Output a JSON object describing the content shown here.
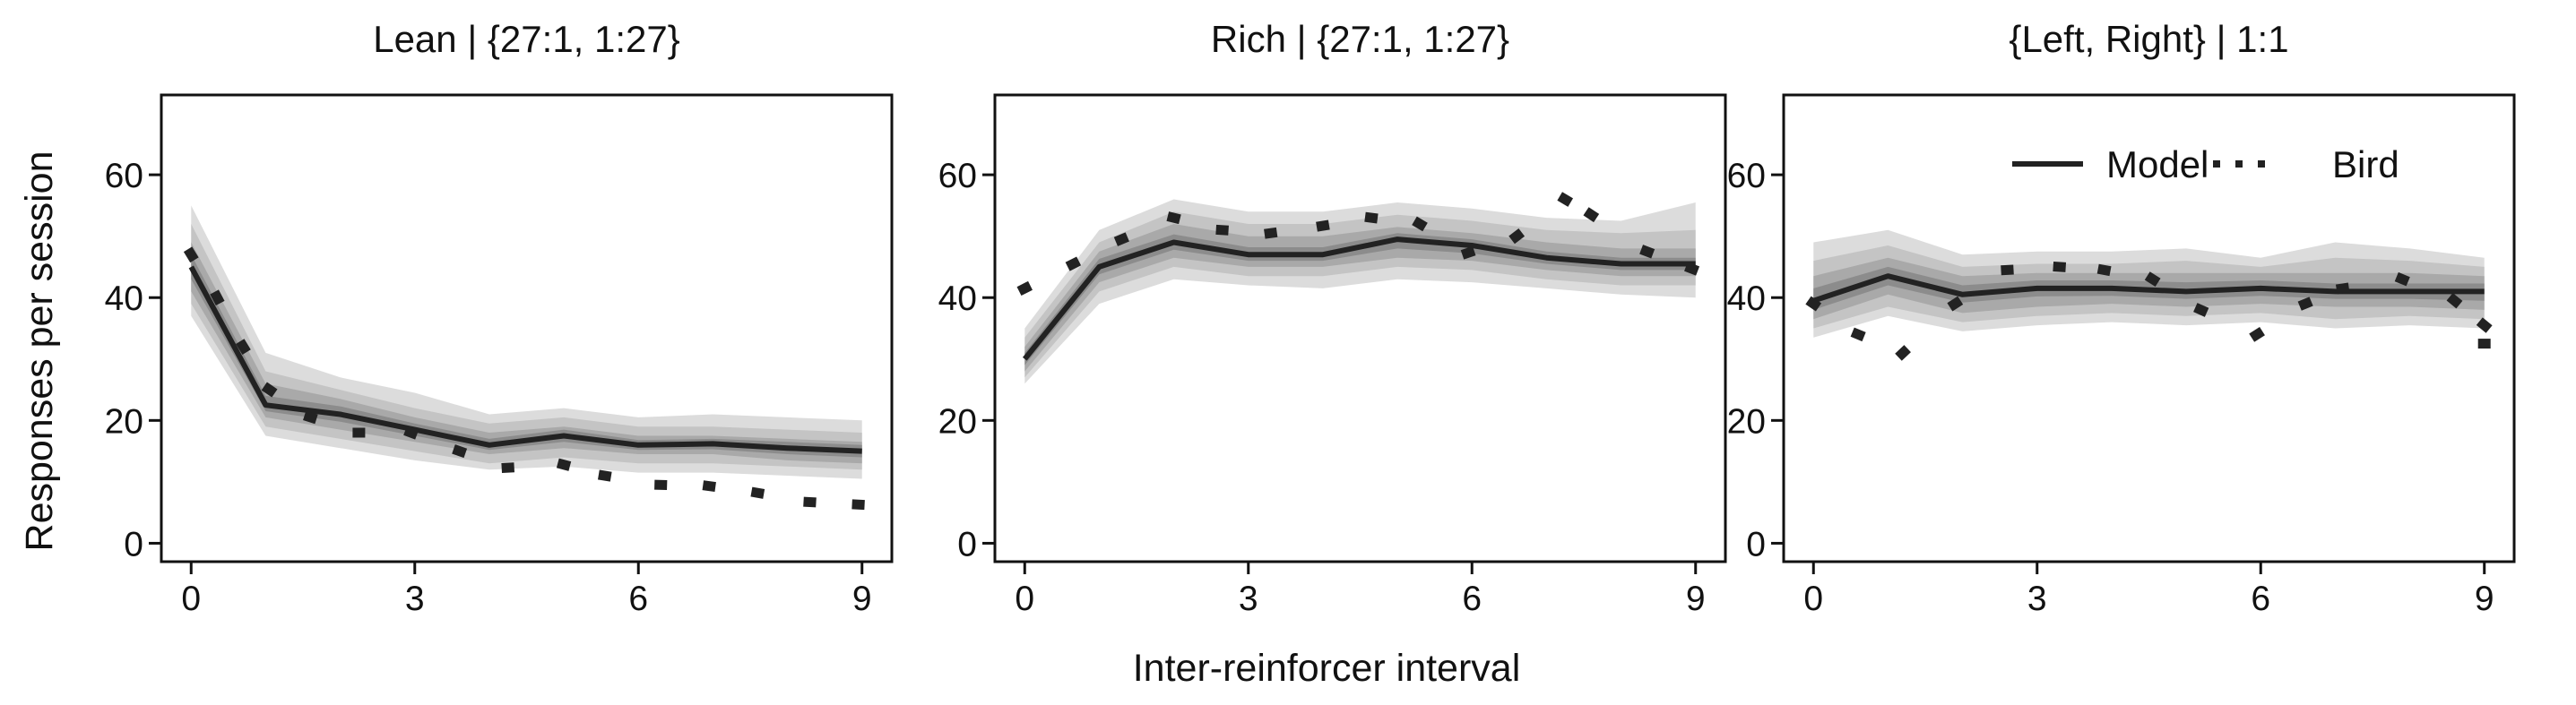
{
  "figure": {
    "xlabel": "Inter-reinforcer interval",
    "ylabel": "Responses per session"
  },
  "legend": {
    "model_label": "Model",
    "bird_label": "Bird"
  },
  "colors": {
    "line": "#222222",
    "band_outer": "#dcdcdc",
    "band_2": "#c4c4c4",
    "band_3": "#a9a9a9",
    "band_inner": "#8c8c8c"
  },
  "chart_data": [
    {
      "type": "line",
      "title": "Lean | {27:1, 1:27}",
      "xlim": [
        -0.4,
        9.4
      ],
      "ylim": [
        -3,
        73
      ],
      "xticks": [
        0,
        3,
        6,
        9
      ],
      "yticks": [
        0,
        20,
        40,
        60
      ],
      "series": [
        {
          "name": "Model",
          "x": [
            0,
            1,
            2,
            3,
            4,
            5,
            6,
            7,
            8,
            9
          ],
          "values": [
            45,
            22.5,
            21,
            18.5,
            16,
            17.5,
            16,
            16.2,
            15.5,
            15
          ],
          "bands": [
            {
              "lower": [
                37,
                17.5,
                15.5,
                13.5,
                12,
                12.5,
                11.5,
                11.5,
                11,
                10.5
              ],
              "upper": [
                55,
                31,
                27,
                24.5,
                21,
                22,
                20.5,
                21,
                20.5,
                20
              ]
            },
            {
              "lower": [
                39,
                19,
                17,
                15,
                13,
                14,
                13,
                13,
                12.5,
                12
              ],
              "upper": [
                52,
                28,
                25,
                22,
                19.5,
                20.5,
                19,
                19,
                18.5,
                18
              ]
            },
            {
              "lower": [
                41,
                20.5,
                18.5,
                16.5,
                14.5,
                15.5,
                14.5,
                14.5,
                13.5,
                13
              ],
              "upper": [
                49,
                26,
                23.5,
                20.5,
                18,
                19,
                17.5,
                17.5,
                17,
                16.5
              ]
            },
            {
              "lower": [
                43,
                21.5,
                19.8,
                17.5,
                15.2,
                16.5,
                15.2,
                15.3,
                14.5,
                14
              ],
              "upper": [
                47,
                24,
                22.3,
                19.5,
                17,
                18.5,
                16.8,
                17,
                16.5,
                16
              ]
            }
          ]
        },
        {
          "name": "Bird",
          "x": [
            0,
            0.35,
            0.7,
            1.05,
            1.6,
            2.25,
            2.95,
            3.6,
            4.25,
            5.0,
            5.55,
            6.3,
            6.95,
            7.6,
            8.3,
            8.95
          ],
          "values": [
            47,
            40,
            32,
            25,
            20.5,
            18,
            18,
            15,
            12.3,
            12.8,
            11,
            9.5,
            9.3,
            8.2,
            6.7,
            6.3
          ]
        }
      ]
    },
    {
      "type": "line",
      "title": "Rich | {27:1, 1:27}",
      "xlim": [
        -0.4,
        9.4
      ],
      "ylim": [
        -3,
        73
      ],
      "xticks": [
        0,
        3,
        6,
        9
      ],
      "yticks": [
        0,
        20,
        40,
        60
      ],
      "series": [
        {
          "name": "Model",
          "x": [
            0,
            1,
            2,
            3,
            4,
            5,
            6,
            7,
            8,
            9
          ],
          "values": [
            30,
            45,
            49,
            47,
            47,
            49.5,
            48.5,
            46.5,
            45.5,
            45.5
          ],
          "bands": [
            {
              "lower": [
                26,
                39,
                43,
                42,
                41.5,
                43,
                42.5,
                41.5,
                40.5,
                40
              ],
              "upper": [
                35,
                51,
                56,
                54,
                54,
                55.5,
                54.5,
                53,
                52.5,
                55.5
              ]
            },
            {
              "lower": [
                27,
                41,
                45,
                43.5,
                43.5,
                45,
                44.5,
                43,
                42,
                42
              ],
              "upper": [
                33.5,
                49,
                54,
                52,
                52,
                53.5,
                52.5,
                51,
                50.5,
                51
              ]
            },
            {
              "lower": [
                28,
                42.5,
                46.5,
                45,
                45,
                46.5,
                46,
                44.5,
                43.5,
                43.5
              ],
              "upper": [
                32,
                47.5,
                52,
                50,
                50,
                51.5,
                50.5,
                49,
                48,
                48
              ]
            },
            {
              "lower": [
                29,
                43.8,
                47.8,
                46,
                46,
                48,
                47.2,
                45.5,
                44.5,
                44.5
              ],
              "upper": [
                31,
                46.3,
                50.3,
                48.2,
                48.2,
                50.5,
                49.5,
                47.5,
                46.5,
                46.5
              ]
            }
          ]
        },
        {
          "name": "Bird",
          "x": [
            0,
            0.65,
            1.3,
            2.0,
            2.65,
            3.3,
            4.0,
            4.65,
            5.3,
            5.95,
            6.6,
            7.25,
            7.6,
            8.35,
            8.95
          ],
          "values": [
            41.5,
            45.5,
            49.5,
            53,
            51,
            50.5,
            51.7,
            53,
            52,
            47.3,
            50,
            56,
            53.5,
            47.5,
            44.7
          ]
        }
      ]
    },
    {
      "type": "line",
      "title": "{Left, Right} | 1:1",
      "xlim": [
        -0.4,
        9.4
      ],
      "ylim": [
        -3,
        73
      ],
      "xticks": [
        0,
        3,
        6,
        9
      ],
      "yticks": [
        0,
        20,
        40,
        60
      ],
      "series": [
        {
          "name": "Model",
          "x": [
            0,
            1,
            2,
            3,
            4,
            5,
            6,
            7,
            8,
            9
          ],
          "values": [
            39.5,
            43.5,
            40.5,
            41.5,
            41.5,
            41,
            41.5,
            41,
            41,
            41
          ],
          "bands": [
            {
              "lower": [
                33.5,
                37,
                34.5,
                35.5,
                36,
                35.5,
                36,
                35,
                35.5,
                35
              ],
              "upper": [
                49,
                51,
                47,
                47.5,
                47.5,
                48,
                46.5,
                49,
                48,
                46.5
              ]
            },
            {
              "lower": [
                35,
                38.5,
                36,
                37,
                37.5,
                37,
                37.5,
                36.5,
                37,
                36.5
              ],
              "upper": [
                46,
                48.5,
                45,
                45.5,
                45.5,
                46,
                45,
                46.5,
                46,
                45
              ]
            },
            {
              "lower": [
                36.5,
                40.5,
                37.5,
                38.5,
                39,
                38.5,
                39,
                38.5,
                38.5,
                38
              ],
              "upper": [
                43.5,
                46.5,
                43.5,
                44,
                44,
                44,
                44,
                44,
                44,
                43.5
              ]
            },
            {
              "lower": [
                38,
                42,
                39.2,
                40.2,
                40.3,
                39.8,
                40.3,
                39.8,
                39.8,
                39.5
              ],
              "upper": [
                41.5,
                45,
                42,
                42.8,
                42.8,
                42.5,
                42.8,
                42.3,
                42.3,
                42.3
              ]
            }
          ]
        },
        {
          "name": "Bird",
          "x": [
            0,
            0.6,
            1.2,
            1.9,
            2.6,
            3.3,
            3.9,
            4.55,
            5.2,
            5.95,
            6.6,
            7.1,
            7.9,
            8.6,
            9.0
          ],
          "values": [
            39,
            34,
            31,
            39,
            44.5,
            45,
            44.5,
            43,
            38,
            34,
            39,
            41.5,
            43,
            39.5,
            35.5
          ]
        },
        {
          "name": "Bird",
          "x": [
            9.0
          ],
          "values": [
            32.5
          ]
        }
      ]
    }
  ]
}
